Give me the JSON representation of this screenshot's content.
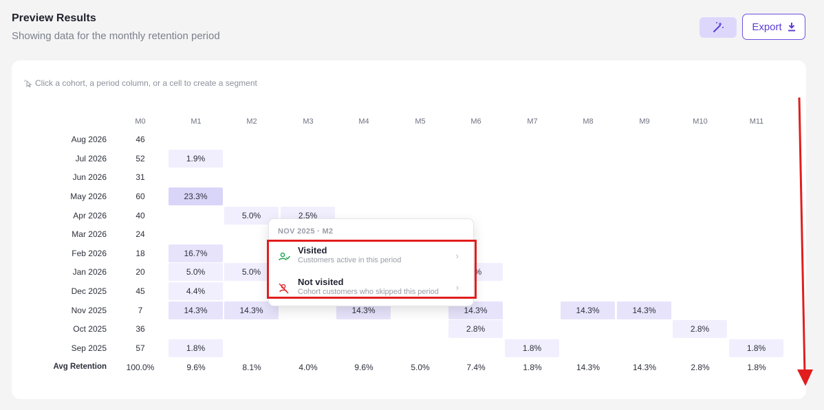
{
  "header": {
    "title": "Preview Results",
    "subtitle": "Showing data for the monthly retention period",
    "export_label": "Export",
    "wand_icon": "magic-wand-icon",
    "export_icon": "download-icon"
  },
  "hint": {
    "text": "Click a cohort, a period column, or a cell to create a segment",
    "icon": "pointer-click-icon"
  },
  "columns": [
    "M0",
    "M1",
    "M2",
    "M3",
    "M4",
    "M5",
    "M6",
    "M7",
    "M8",
    "M9",
    "M10",
    "M11"
  ],
  "rows": [
    {
      "cohort": "Aug 2026",
      "size": "46",
      "cells": [
        "",
        "",
        "",
        "",
        "",
        "",
        "",
        "",
        "",
        "",
        ""
      ]
    },
    {
      "cohort": "Jul 2026",
      "size": "52",
      "cells": [
        "1.9%",
        "",
        "",
        "",
        "",
        "",
        "",
        "",
        "",
        "",
        ""
      ]
    },
    {
      "cohort": "Jun 2026",
      "size": "31",
      "cells": [
        "",
        "",
        "",
        "",
        "",
        "",
        "",
        "",
        "",
        "",
        ""
      ]
    },
    {
      "cohort": "May 2026",
      "size": "60",
      "cells": [
        "23.3%",
        "",
        "",
        "",
        "",
        "",
        "",
        "",
        "",
        "",
        ""
      ]
    },
    {
      "cohort": "Apr 2026",
      "size": "40",
      "cells": [
        "",
        "5.0%",
        "2.5%",
        "",
        "",
        "",
        "",
        "",
        "",
        "",
        ""
      ]
    },
    {
      "cohort": "Mar 2026",
      "size": "24",
      "cells": [
        "",
        "",
        "",
        "",
        "",
        "",
        "",
        "",
        "",
        "",
        ""
      ]
    },
    {
      "cohort": "Feb 2026",
      "size": "18",
      "cells": [
        "16.7%",
        "",
        "",
        "",
        "",
        "",
        "",
        "",
        "",
        "",
        ""
      ]
    },
    {
      "cohort": "Jan 2026",
      "size": "20",
      "cells": [
        "5.0%",
        "5.0%",
        "",
        "",
        "",
        "0%",
        "",
        "",
        "",
        "",
        ""
      ]
    },
    {
      "cohort": "Dec 2025",
      "size": "45",
      "cells": [
        "4.4%",
        "",
        "",
        "",
        "",
        "",
        "",
        "",
        "",
        "",
        ""
      ]
    },
    {
      "cohort": "Nov 2025",
      "size": "7",
      "cells": [
        "14.3%",
        "14.3%",
        "",
        "14.3%",
        "",
        "14.3%",
        "",
        "14.3%",
        "14.3%",
        "",
        ""
      ]
    },
    {
      "cohort": "Oct 2025",
      "size": "36",
      "cells": [
        "",
        "",
        "",
        "",
        "",
        "2.8%",
        "",
        "",
        "",
        "2.8%",
        ""
      ]
    },
    {
      "cohort": "Sep 2025",
      "size": "57",
      "cells": [
        "1.8%",
        "",
        "",
        "",
        "",
        "",
        "1.8%",
        "",
        "",
        "",
        "1.8%"
      ]
    }
  ],
  "avg": {
    "label": "Avg Retention",
    "values": [
      "100.0%",
      "9.6%",
      "8.1%",
      "4.0%",
      "9.6%",
      "5.0%",
      "7.4%",
      "1.8%",
      "14.3%",
      "14.3%",
      "2.8%",
      "1.8%"
    ]
  },
  "popup": {
    "title": "NOV 2025 · M2",
    "items": [
      {
        "label": "Visited",
        "desc": "Customers active in this period",
        "icon": "user-check-icon"
      },
      {
        "label": "Not visited",
        "desc": "Cohort customers who skipped this period",
        "icon": "user-off-icon"
      }
    ]
  },
  "colors": {
    "accent": "#6d4fe0",
    "cell_light": "#f1effd",
    "cell_mid": "#e6e3fb",
    "cell_dark": "#d9d5f8",
    "annotation_red": "#e11d1d"
  }
}
